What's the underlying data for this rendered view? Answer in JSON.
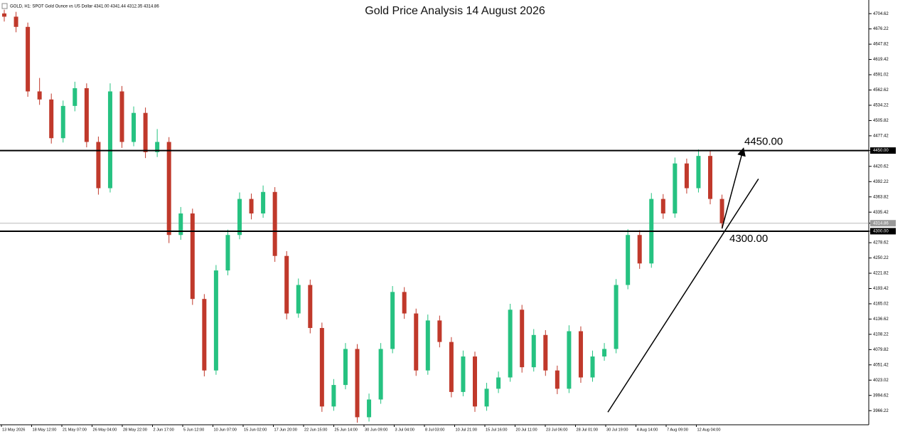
{
  "chart_data": {
    "type": "candlestick",
    "title": "Gold Price Analysis 14 August 2026",
    "header": "GOLD, H1:  SPOT Gold Ounce vs US Dollar  4341.00 4341.44 4312.35 4314.86",
    "ylim": [
      3940,
      4730
    ],
    "yticks": [
      4704.62,
      4676.22,
      4647.82,
      4619.42,
      4591.02,
      4562.62,
      4534.22,
      4505.82,
      4477.42,
      {
        "value": 4450,
        "label": "4450.00"
      },
      4420.62,
      4392.22,
      4363.82,
      4335.42,
      4314.86,
      {
        "value": 4300,
        "label": "4300.00"
      },
      4278.62,
      4250.22,
      4221.82,
      4193.42,
      4165.02,
      4136.62,
      4108.22,
      4079.82,
      4051.42,
      4023.02,
      3994.62,
      3966.22
    ],
    "x_labels": [
      "13 May 2026",
      "18 May 12:00",
      "21 May 07:00",
      "26 May 04:00",
      "28 May 22:00",
      "2 Jun 17:00",
      "5 Jun 12:00",
      "10 Jun 07:00",
      "15 Jun 02:00",
      "17 Jun 20:00",
      "22 Jun 15:00",
      "25 Jun 14:00",
      "30 Jun 09:00",
      "3 Jul 04:00",
      "8 Jul 03:00",
      "10 Jul 21:00",
      "15 Jul 16:00",
      "20 Jul 11:00",
      "23 Jul 06:00",
      "28 Jul 01:00",
      "30 Jul 19:00",
      "4 Aug 14:00",
      "7 Aug 09:00",
      "12 Aug 04:00"
    ],
    "up_color": "#26c281",
    "down_color": "#c0392b",
    "ohlc": [
      [
        4705,
        4712,
        4690,
        4699
      ],
      [
        4699,
        4708,
        4670,
        4680
      ],
      [
        4680,
        4688,
        4550,
        4560
      ],
      [
        4560,
        4585,
        4535,
        4545
      ],
      [
        4545,
        4556,
        4463,
        4473
      ],
      [
        4473,
        4543,
        4465,
        4533
      ],
      [
        4533,
        4578,
        4523,
        4566
      ],
      [
        4566,
        4575,
        4456,
        4466
      ],
      [
        4466,
        4476,
        4368,
        4380
      ],
      [
        4380,
        4575,
        4372,
        4560
      ],
      [
        4560,
        4570,
        4455,
        4466
      ],
      [
        4466,
        4532,
        4458,
        4520
      ],
      [
        4520,
        4530,
        4436,
        4447
      ],
      [
        4447,
        4490,
        4438,
        4466
      ],
      [
        4466,
        4475,
        4278,
        4293
      ],
      [
        4293,
        4345,
        4284,
        4333
      ],
      [
        4333,
        4342,
        4163,
        4174
      ],
      [
        4174,
        4183,
        4030,
        4041
      ],
      [
        4041,
        4237,
        4033,
        4227
      ],
      [
        4227,
        4303,
        4218,
        4293
      ],
      [
        4293,
        4372,
        4285,
        4360
      ],
      [
        4360,
        4370,
        4322,
        4333
      ],
      [
        4333,
        4385,
        4325,
        4373
      ],
      [
        4373,
        4382,
        4243,
        4254
      ],
      [
        4254,
        4263,
        4136,
        4147
      ],
      [
        4147,
        4212,
        4139,
        4200
      ],
      [
        4200,
        4210,
        4110,
        4120
      ],
      [
        4120,
        4130,
        3964,
        3974
      ],
      [
        3974,
        4025,
        3966,
        4014
      ],
      [
        4014,
        4092,
        4006,
        4081
      ],
      [
        4081,
        4090,
        3944,
        3954
      ],
      [
        3954,
        3998,
        3946,
        3987
      ],
      [
        3987,
        4092,
        3979,
        4081
      ],
      [
        4081,
        4198,
        4073,
        4187
      ],
      [
        4187,
        4196,
        4137,
        4147
      ],
      [
        4147,
        4156,
        4031,
        4041
      ],
      [
        4041,
        4145,
        4033,
        4134
      ],
      [
        4134,
        4143,
        4084,
        4094
      ],
      [
        4094,
        4103,
        3991,
        4001
      ],
      [
        4001,
        4078,
        3993,
        4067
      ],
      [
        4067,
        4076,
        3964,
        3974
      ],
      [
        3974,
        4018,
        3966,
        4007
      ],
      [
        4007,
        4039,
        3999,
        4028
      ],
      [
        4028,
        4165,
        4020,
        4154
      ],
      [
        4154,
        4163,
        4037,
        4047
      ],
      [
        4047,
        4118,
        4039,
        4107
      ],
      [
        4107,
        4116,
        4031,
        4041
      ],
      [
        4041,
        4050,
        3997,
        4007
      ],
      [
        4007,
        4125,
        3999,
        4114
      ],
      [
        4114,
        4123,
        4018,
        4028
      ],
      [
        4028,
        4078,
        4020,
        4067
      ],
      [
        4067,
        4092,
        4059,
        4081
      ],
      [
        4081,
        4211,
        4073,
        4200
      ],
      [
        4200,
        4304,
        4192,
        4293
      ],
      [
        4293,
        4302,
        4230,
        4240
      ],
      [
        4240,
        4371,
        4232,
        4360
      ],
      [
        4360,
        4369,
        4323,
        4333
      ],
      [
        4333,
        4437,
        4325,
        4426
      ],
      [
        4426,
        4435,
        4370,
        4380
      ],
      [
        4380,
        4452,
        4372,
        4440
      ],
      [
        4440,
        4449,
        4350,
        4360
      ],
      [
        4360,
        4368,
        4305,
        4314.86
      ]
    ],
    "current_price": 4314.86,
    "levels": [
      {
        "value": 4450,
        "label": "4450.00"
      },
      {
        "value": 4300,
        "label": "4300.00"
      }
    ],
    "trendline": {
      "from": [
        51.3,
        3963.5
      ],
      "to": [
        64.1,
        4397.3
      ]
    },
    "arrow": {
      "from": [
        61,
        4305
      ],
      "to": [
        62.8,
        4452
      ]
    }
  }
}
